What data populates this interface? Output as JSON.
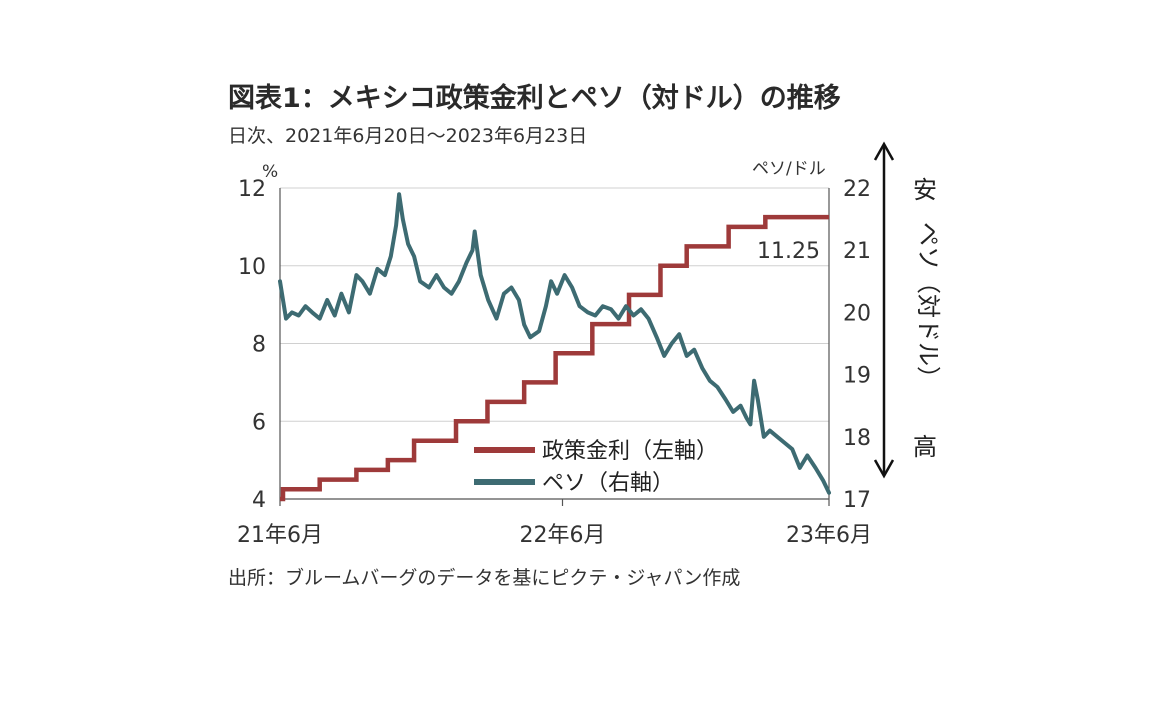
{
  "title": "図表1：メキシコ政策金利とペソ（対ドル）の推移",
  "subtitle": "日次、2021年6月20日～2023年6月23日",
  "source": "出所：ブルームバーグのデータを基にピクテ・ジャパン作成",
  "colors": {
    "rate": "#9e3a3a",
    "peso": "#3d6b72",
    "grid": "#d0d0d0",
    "axis": "#555555"
  },
  "chart_data": {
    "type": "line",
    "x_tick_labels": [
      "21年6月",
      "22年6月",
      "23年6月"
    ],
    "left_axis": {
      "unit": "%",
      "ylim": [
        4,
        12
      ],
      "ticks": [
        "4",
        "6",
        "8",
        "10",
        "12"
      ]
    },
    "right_axis": {
      "unit": "ペソ/ドル",
      "ylim": [
        17,
        22
      ],
      "ticks": [
        "17",
        "18",
        "19",
        "20",
        "21",
        "22"
      ]
    },
    "side_labels": {
      "top": "安",
      "middle": "ペソ（対ドル）",
      "bottom": "高"
    },
    "annotation": "11.25",
    "series": [
      {
        "name": "政策金利（左軸）",
        "axis": "left",
        "x": [
          "2021-06-20",
          "2021-06-24",
          "2021-08-12",
          "2021-09-30",
          "2021-11-11",
          "2021-12-16",
          "2022-02-10",
          "2022-03-24",
          "2022-05-12",
          "2022-06-23",
          "2022-08-11",
          "2022-09-29",
          "2022-11-10",
          "2022-12-15",
          "2023-02-09",
          "2023-03-30",
          "2023-06-23"
        ],
        "values": [
          4.0,
          4.25,
          4.5,
          4.75,
          5.0,
          5.5,
          6.0,
          6.5,
          7.0,
          7.75,
          8.5,
          9.25,
          10.0,
          10.5,
          11.0,
          11.25,
          11.25
        ]
      },
      {
        "name": "ペソ（右軸）",
        "axis": "right",
        "x": [
          "2021-06-20",
          "2021-06-28",
          "2021-07-06",
          "2021-07-15",
          "2021-07-24",
          "2021-08-02",
          "2021-08-12",
          "2021-08-22",
          "2021-09-01",
          "2021-09-10",
          "2021-09-20",
          "2021-09-30",
          "2021-10-08",
          "2021-10-18",
          "2021-10-28",
          "2021-11-07",
          "2021-11-15",
          "2021-11-22",
          "2021-11-26",
          "2021-12-01",
          "2021-12-08",
          "2021-12-16",
          "2021-12-24",
          "2022-01-05",
          "2022-01-15",
          "2022-01-25",
          "2022-02-04",
          "2022-02-14",
          "2022-02-24",
          "2022-03-04",
          "2022-03-07",
          "2022-03-15",
          "2022-03-25",
          "2022-04-05",
          "2022-04-15",
          "2022-04-25",
          "2022-05-05",
          "2022-05-12",
          "2022-05-20",
          "2022-06-01",
          "2022-06-10",
          "2022-06-17",
          "2022-06-25",
          "2022-07-05",
          "2022-07-15",
          "2022-07-25",
          "2022-08-05",
          "2022-08-15",
          "2022-08-25",
          "2022-09-05",
          "2022-09-15",
          "2022-09-25",
          "2022-10-05",
          "2022-10-15",
          "2022-10-25",
          "2022-11-05",
          "2022-11-15",
          "2022-11-25",
          "2022-12-05",
          "2022-12-15",
          "2022-12-25",
          "2023-01-05",
          "2023-01-15",
          "2023-01-25",
          "2023-02-05",
          "2023-02-15",
          "2023-02-25",
          "2023-03-05",
          "2023-03-10",
          "2023-03-15",
          "2023-03-20",
          "2023-03-28",
          "2023-04-05",
          "2023-04-15",
          "2023-04-25",
          "2023-05-05",
          "2023-05-15",
          "2023-05-25",
          "2023-06-05",
          "2023-06-15",
          "2023-06-23"
        ],
        "values": [
          20.5,
          19.9,
          20.0,
          19.95,
          20.1,
          20.0,
          19.9,
          20.2,
          19.95,
          20.3,
          20.0,
          20.6,
          20.5,
          20.3,
          20.7,
          20.6,
          20.9,
          21.4,
          21.9,
          21.5,
          21.1,
          20.9,
          20.5,
          20.4,
          20.6,
          20.4,
          20.3,
          20.5,
          20.8,
          21.0,
          21.3,
          20.6,
          20.2,
          19.9,
          20.3,
          20.4,
          20.2,
          19.8,
          19.6,
          19.7,
          20.1,
          20.5,
          20.3,
          20.6,
          20.4,
          20.1,
          20.0,
          19.95,
          20.1,
          20.05,
          19.9,
          20.1,
          19.95,
          20.05,
          19.9,
          19.6,
          19.3,
          19.5,
          19.65,
          19.3,
          19.4,
          19.1,
          18.9,
          18.8,
          18.6,
          18.4,
          18.5,
          18.3,
          18.2,
          18.9,
          18.6,
          18.0,
          18.1,
          18.0,
          17.9,
          17.8,
          17.5,
          17.7,
          17.5,
          17.3,
          17.1
        ]
      }
    ]
  }
}
